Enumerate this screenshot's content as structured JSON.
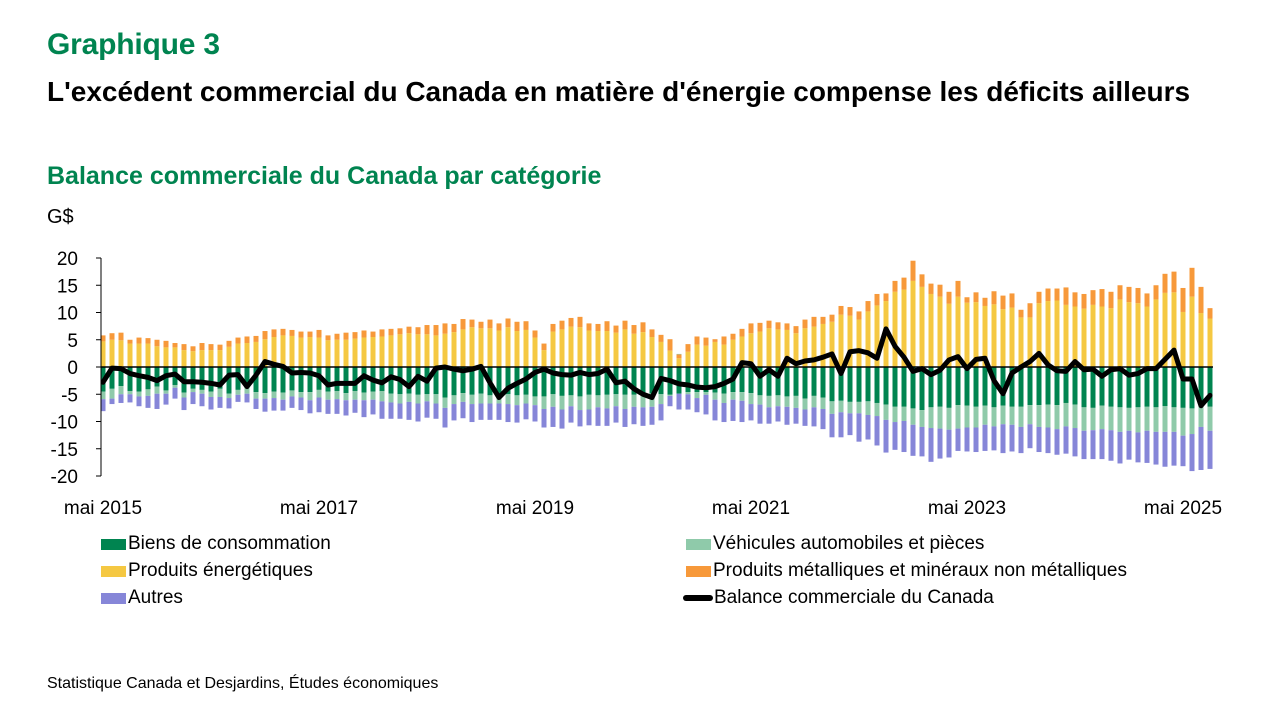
{
  "header": {
    "chart_number": "Graphique 3",
    "title": "L'excédent commercial du Canada en matière d'énergie compense les déficits ailleurs",
    "subtitle": "Balance commerciale du Canada par catégorie",
    "unit": "G$"
  },
  "source": "Statistique Canada et Desjardins, Études économiques",
  "colors": {
    "biens": "#008450",
    "vehicules": "#8FCAAA",
    "energie": "#F5C842",
    "metaux": "#F7993A",
    "autres": "#8686D8",
    "balance": "#000000"
  },
  "legend": [
    {
      "key": "biens",
      "label": "Biens de consommation",
      "type": "box"
    },
    {
      "key": "vehicules",
      "label": "Véhicules automobiles et pièces",
      "type": "box"
    },
    {
      "key": "energie",
      "label": "Produits énergétiques",
      "type": "box"
    },
    {
      "key": "metaux",
      "label": "Produits métalliques et minéraux non métalliques",
      "type": "box"
    },
    {
      "key": "autres",
      "label": "Autres",
      "type": "box"
    },
    {
      "key": "balance",
      "label": "Balance commerciale du Canada",
      "type": "line"
    }
  ],
  "chart_data": {
    "type": "bar",
    "stacked": true,
    "title": "Balance commerciale du Canada par catégorie",
    "ylabel": "G$",
    "xlabel": "",
    "ylim": [
      -20,
      20
    ],
    "yticks": [
      20,
      15,
      10,
      5,
      0,
      -5,
      -10,
      -15,
      -20
    ],
    "xtick_labels": [
      {
        "index": 0,
        "label": "mai 2015"
      },
      {
        "index": 24,
        "label": "mai 2017"
      },
      {
        "index": 48,
        "label": "mai 2019"
      },
      {
        "index": 72,
        "label": "mai 2021"
      },
      {
        "index": 96,
        "label": "mai 2023"
      },
      {
        "index": 120,
        "label": "mai 2025"
      }
    ],
    "start_month": "2015-05",
    "frequency": "monthly",
    "series": [
      {
        "key": "energie",
        "name": "Produits énergétiques",
        "values": [
          4.7,
          5.0,
          4.9,
          4.3,
          4.3,
          4.3,
          3.8,
          3.6,
          3.6,
          3.1,
          2.9,
          3.1,
          3.1,
          3.1,
          3.7,
          4.3,
          4.4,
          4.6,
          5.1,
          5.5,
          5.8,
          5.7,
          5.4,
          5.5,
          5.4,
          4.9,
          5.0,
          5.0,
          5.2,
          5.4,
          5.5,
          5.6,
          5.8,
          6.0,
          6.2,
          6.0,
          6.0,
          5.8,
          6.1,
          6.4,
          6.9,
          7.3,
          7.1,
          7.1,
          6.7,
          7.3,
          6.6,
          6.8,
          5.4,
          3.1,
          6.5,
          6.9,
          7.4,
          7.3,
          6.7,
          6.6,
          6.6,
          6.3,
          6.9,
          6.1,
          6.4,
          5.5,
          4.6,
          3.0,
          1.6,
          2.8,
          4.1,
          3.9,
          4.6,
          4.1,
          5.0,
          5.6,
          6.2,
          6.5,
          7.1,
          6.9,
          6.8,
          6.2,
          7.1,
          7.4,
          7.9,
          8.3,
          9.6,
          9.4,
          8.7,
          10.2,
          11.3,
          12.1,
          13.8,
          14.2,
          15.8,
          14.7,
          13.4,
          12.9,
          11.6,
          12.9,
          11.8,
          11.9,
          11.2,
          11.5,
          10.6,
          10.9,
          9.1,
          9.1,
          11.7,
          12.1,
          12.2,
          11.4,
          11.1,
          10.7,
          11.4,
          11.1,
          10.8,
          12.4,
          11.9,
          11.7,
          11.1,
          12.4,
          13.6,
          13.7,
          10.1,
          12.9,
          9.9,
          8.9
        ]
      },
      {
        "key": "metaux",
        "name": "Produits métalliques et minéraux non métalliques",
        "values": [
          1.1,
          1.2,
          1.4,
          0.7,
          1.1,
          1.0,
          1.2,
          1.2,
          0.8,
          1.1,
          0.9,
          1.3,
          1.1,
          1.0,
          1.1,
          1.1,
          1.2,
          1.1,
          1.5,
          1.4,
          1.2,
          1.1,
          1.1,
          1.0,
          1.4,
          0.9,
          1.1,
          1.3,
          1.2,
          1.3,
          1.0,
          1.3,
          1.2,
          1.1,
          1.2,
          1.3,
          1.7,
          1.9,
          1.9,
          1.5,
          1.9,
          1.4,
          1.2,
          1.6,
          1.3,
          1.6,
          1.7,
          1.6,
          1.3,
          1.2,
          1.4,
          1.6,
          1.6,
          1.9,
          1.3,
          1.3,
          1.8,
          1.3,
          1.6,
          1.6,
          1.8,
          1.4,
          1.3,
          2.1,
          0.7,
          1.4,
          1.5,
          1.5,
          0.5,
          1.5,
          1.1,
          1.4,
          1.8,
          1.6,
          1.4,
          1.3,
          1.2,
          1.3,
          1.6,
          1.8,
          1.3,
          1.3,
          1.6,
          1.6,
          1.5,
          1.9,
          2.1,
          1.4,
          2.0,
          2.2,
          3.7,
          2.3,
          1.9,
          2.2,
          2.2,
          2.9,
          1.0,
          1.8,
          1.5,
          2.4,
          2.5,
          2.6,
          1.4,
          2.6,
          2.1,
          2.3,
          2.2,
          3.2,
          2.6,
          2.7,
          2.7,
          3.2,
          3.0,
          2.6,
          2.8,
          2.8,
          2.4,
          2.6,
          3.5,
          3.8,
          4.4,
          5.3,
          4.8,
          1.9,
          4.2
        ]
      },
      {
        "key": "biens",
        "name": "Biens de consommation",
        "values": [
          -4.5,
          -4.0,
          -3.5,
          -4.4,
          -4.5,
          -4.1,
          -3.6,
          -4.3,
          -3.3,
          -4.7,
          -4.0,
          -4.2,
          -4.5,
          -4.0,
          -4.9,
          -4.2,
          -3.9,
          -4.6,
          -4.8,
          -4.5,
          -4.7,
          -4.3,
          -4.6,
          -4.6,
          -4.2,
          -4.5,
          -4.4,
          -4.8,
          -4.4,
          -4.7,
          -4.5,
          -4.4,
          -4.9,
          -5.0,
          -4.9,
          -5.1,
          -5.0,
          -5.0,
          -5.6,
          -5.2,
          -4.8,
          -5.1,
          -4.9,
          -5.2,
          -5.1,
          -5.0,
          -5.2,
          -5.1,
          -5.4,
          -5.4,
          -5.0,
          -5.3,
          -5.2,
          -5.4,
          -5.1,
          -5.2,
          -5.1,
          -5.0,
          -5.1,
          -5.1,
          -5.1,
          -4.9,
          -5.0,
          -5.1,
          -4.9,
          -4.6,
          -4.6,
          -4.6,
          -4.7,
          -4.9,
          -4.6,
          -4.6,
          -4.8,
          -5.2,
          -5.3,
          -5.2,
          -5.4,
          -5.3,
          -5.8,
          -5.3,
          -5.6,
          -6.3,
          -6.2,
          -6.4,
          -6.4,
          -6.3,
          -6.6,
          -6.9,
          -7.3,
          -7.3,
          -7.6,
          -7.9,
          -7.4,
          -7.3,
          -7.5,
          -7.0,
          -7.1,
          -7.3,
          -7.1,
          -7.4,
          -7.1,
          -7.3,
          -7.3,
          -7.0,
          -7.0,
          -6.9,
          -7.0,
          -6.6,
          -6.9,
          -7.4,
          -7.5,
          -7.1,
          -7.3,
          -7.4,
          -7.5,
          -7.4,
          -7.3,
          -7.4,
          -7.2,
          -7.4,
          -7.5,
          -7.6,
          -6.5,
          -7.3,
          -6.7
        ]
      },
      {
        "key": "vehicules",
        "name": "Véhicules automobiles et pièces",
        "values": [
          -1.4,
          -1.8,
          -1.5,
          -0.6,
          -0.9,
          -1.2,
          -1.3,
          -0.6,
          -0.5,
          -0.9,
          -0.6,
          -0.7,
          -1.0,
          -1.5,
          -0.8,
          -0.9,
          -1.0,
          -1.2,
          -1.0,
          -1.2,
          -1.3,
          -1.1,
          -1.0,
          -1.5,
          -1.4,
          -1.5,
          -1.5,
          -1.3,
          -1.6,
          -1.4,
          -1.5,
          -1.9,
          -1.6,
          -1.7,
          -1.5,
          -1.6,
          -1.3,
          -1.7,
          -1.9,
          -1.6,
          -1.6,
          -1.7,
          -1.8,
          -1.5,
          -1.6,
          -1.8,
          -1.8,
          -1.6,
          -1.6,
          -2.3,
          -2.3,
          -2.5,
          -2.0,
          -2.5,
          -2.7,
          -2.2,
          -2.5,
          -2.2,
          -2.6,
          -2.2,
          -2.3,
          -2.4,
          -1.8,
          -0.2,
          0.1,
          -0.4,
          -1.1,
          -0.5,
          -1.3,
          -1.7,
          -1.4,
          -1.6,
          -2.0,
          -1.7,
          -2.1,
          -2.0,
          -1.9,
          -2.2,
          -2.0,
          -2.1,
          -2.1,
          -2.3,
          -2.1,
          -2.1,
          -2.1,
          -2.5,
          -2.4,
          -2.8,
          -2.8,
          -2.6,
          -3.0,
          -3.1,
          -3.8,
          -4.0,
          -4.0,
          -4.3,
          -4.0,
          -3.8,
          -3.5,
          -3.5,
          -3.4,
          -3.3,
          -3.7,
          -3.5,
          -4.0,
          -4.2,
          -4.4,
          -4.3,
          -4.3,
          -4.3,
          -4.1,
          -4.3,
          -4.3,
          -4.5,
          -4.2,
          -4.6,
          -4.4,
          -4.5,
          -4.7,
          -4.5,
          -5.1,
          -4.7,
          -4.5,
          -4.4,
          -4.2
        ]
      },
      {
        "key": "autres",
        "name": "Autres",
        "values": [
          -2.2,
          -1.0,
          -1.6,
          -1.5,
          -1.8,
          -2.2,
          -2.8,
          -2.0,
          -2.0,
          -2.3,
          -2.2,
          -2.3,
          -2.3,
          -2.0,
          -1.9,
          -1.3,
          -1.6,
          -1.9,
          -2.4,
          -2.3,
          -2.0,
          -2.1,
          -2.3,
          -2.4,
          -2.7,
          -2.6,
          -2.7,
          -2.8,
          -2.4,
          -3.1,
          -2.7,
          -3.2,
          -3.0,
          -2.8,
          -3.3,
          -3.3,
          -3.0,
          -2.8,
          -3.6,
          -3.0,
          -3.0,
          -3.3,
          -3.0,
          -3.0,
          -3.0,
          -3.3,
          -3.2,
          -2.9,
          -3.0,
          -3.4,
          -3.7,
          -3.5,
          -3.0,
          -3.0,
          -2.9,
          -3.4,
          -3.2,
          -3.0,
          -3.3,
          -3.2,
          -3.4,
          -3.3,
          -3.0,
          -1.9,
          -2.9,
          -2.8,
          -2.6,
          -3.6,
          -3.8,
          -3.5,
          -3.9,
          -3.9,
          -3.0,
          -3.5,
          -3.0,
          -2.8,
          -3.3,
          -2.9,
          -3.0,
          -3.5,
          -3.7,
          -4.3,
          -4.6,
          -4.0,
          -5.2,
          -4.5,
          -5.4,
          -6.0,
          -5.1,
          -5.7,
          -5.7,
          -5.4,
          -6.2,
          -5.5,
          -5.1,
          -4.1,
          -4.4,
          -4.5,
          -4.8,
          -4.4,
          -5.3,
          -4.9,
          -4.8,
          -4.4,
          -4.6,
          -4.7,
          -4.7,
          -5.0,
          -5.2,
          -5.2,
          -5.3,
          -5.5,
          -5.6,
          -5.8,
          -5.3,
          -5.5,
          -5.9,
          -6.0,
          -6.4,
          -6.2,
          -5.6,
          -6.8,
          -7.9,
          -7.0,
          -8.0
        ]
      },
      {
        "key": "balance",
        "name": "Balance commerciale du Canada",
        "type": "line",
        "values": [
          -2.8,
          -0.2,
          -0.3,
          -1.2,
          -1.6,
          -1.9,
          -2.5,
          -1.6,
          -1.3,
          -2.7,
          -2.7,
          -2.8,
          -3.0,
          -3.3,
          -1.5,
          -1.4,
          -3.6,
          -1.5,
          1.0,
          0.5,
          0.1,
          -1.1,
          -1.0,
          -1.1,
          -1.6,
          -3.3,
          -3.0,
          -3.0,
          -3.0,
          -1.6,
          -2.4,
          -2.9,
          -1.8,
          -2.3,
          -3.6,
          -1.7,
          -2.6,
          -0.2,
          0.0,
          -0.4,
          -0.7,
          -0.4,
          0.1,
          -2.9,
          -5.6,
          -3.9,
          -3.0,
          -2.2,
          -1.0,
          -0.4,
          -1.1,
          -1.4,
          -1.5,
          -1.0,
          -1.4,
          -1.2,
          -0.4,
          -2.9,
          -2.6,
          -4.0,
          -5.0,
          -5.6,
          -2.1,
          -2.5,
          -3.1,
          -3.3,
          -3.7,
          -3.8,
          -3.6,
          -3.0,
          -2.2,
          0.8,
          0.6,
          -1.7,
          -0.5,
          -1.7,
          1.6,
          0.6,
          1.1,
          1.3,
          1.8,
          2.4,
          -1.2,
          2.8,
          3.0,
          2.6,
          1.6,
          7.0,
          3.8,
          1.8,
          -0.8,
          -0.3,
          -1.4,
          -0.6,
          1.3,
          1.9,
          -0.3,
          1.4,
          1.6,
          -2.5,
          -4.9,
          -1.1,
          0.0,
          1.0,
          2.5,
          0.4,
          -0.7,
          -0.8,
          1.0,
          -0.5,
          -0.4,
          -1.7,
          -0.5,
          -0.3,
          -1.5,
          -1.2,
          -0.3,
          -0.3,
          1.4,
          3.1,
          -2.2,
          -2.2,
          -7.1,
          -5.2
        ]
      }
    ]
  }
}
